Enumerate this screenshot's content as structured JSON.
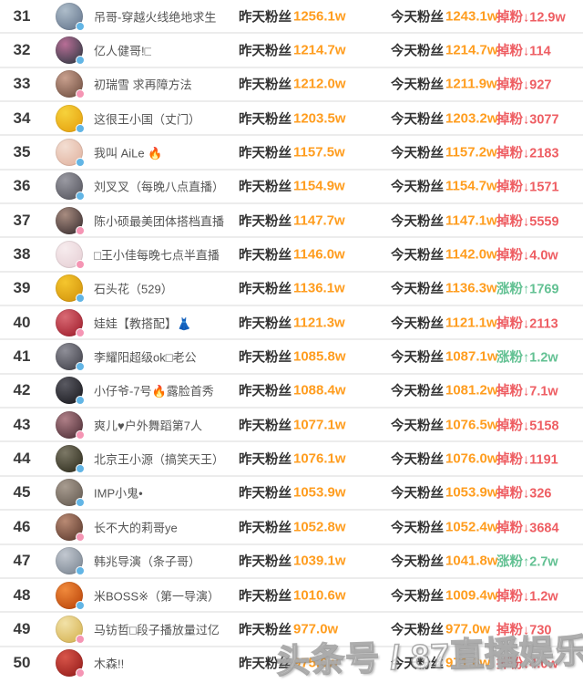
{
  "table": {
    "yesterday_label": "昨天粉丝",
    "today_label": "今天粉丝"
  },
  "watermark": "头条号 / 87直播娱乐",
  "colors": {
    "value_orange": "#ff9d1f",
    "drop_red": "#ee5e63",
    "rise_green": "#63c193",
    "badge_blue": "#62b5e5",
    "badge_pink": "#f595b4"
  },
  "rows": [
    {
      "rank": "31",
      "name": "吊哥-穿越火线绝地求生",
      "yesterday": "1256.1w",
      "today": "1243.1w",
      "change": {
        "type": "drop",
        "label": "掉粉",
        "arrow": "↓",
        "value": "12.9w"
      },
      "avatar": {
        "c1": "#aebdca",
        "c2": "#6f8096",
        "badge": "blue"
      }
    },
    {
      "rank": "32",
      "name": "亿人健哥!□",
      "yesterday": "1214.7w",
      "today": "1214.7w",
      "change": {
        "type": "drop",
        "label": "掉粉",
        "arrow": "↓",
        "value": "114"
      },
      "avatar": {
        "c1": "#b86e96",
        "c2": "#42404e",
        "badge": "blue"
      }
    },
    {
      "rank": "33",
      "name": "初瑞雪 求再障方法",
      "yesterday": "1212.0w",
      "today": "1211.9w",
      "change": {
        "type": "drop",
        "label": "掉粉",
        "arrow": "↓",
        "value": "927"
      },
      "avatar": {
        "c1": "#c9a08e",
        "c2": "#7d5b4c",
        "badge": "pink"
      }
    },
    {
      "rank": "34",
      "name": "这很王小国（丈门）",
      "yesterday": "1203.5w",
      "today": "1203.2w",
      "change": {
        "type": "drop",
        "label": "掉粉",
        "arrow": "↓",
        "value": "3077"
      },
      "avatar": {
        "c1": "#f6d23c",
        "c2": "#e8a714",
        "badge": "blue"
      }
    },
    {
      "rank": "35",
      "name": "我叫 AiLe 🔥",
      "yesterday": "1157.5w",
      "today": "1157.2w",
      "change": {
        "type": "drop",
        "label": "掉粉",
        "arrow": "↓",
        "value": "2183"
      },
      "avatar": {
        "c1": "#f3ded2",
        "c2": "#e3b8a6",
        "badge": "blue"
      }
    },
    {
      "rank": "36",
      "name": "刘叉叉（每晚八点直播）",
      "yesterday": "1154.9w",
      "today": "1154.7w",
      "change": {
        "type": "drop",
        "label": "掉粉",
        "arrow": "↓",
        "value": "1571"
      },
      "avatar": {
        "c1": "#9a9aa2",
        "c2": "#5f5f68",
        "badge": "blue"
      }
    },
    {
      "rank": "37",
      "name": "陈小硕最美团体搭档直播",
      "yesterday": "1147.7w",
      "today": "1147.1w",
      "change": {
        "type": "drop",
        "label": "掉粉",
        "arrow": "↓",
        "value": "5559"
      },
      "avatar": {
        "c1": "#a88c80",
        "c2": "#4a3c3c",
        "badge": "pink"
      }
    },
    {
      "rank": "38",
      "name": "□王小佳每晚七点半直播",
      "yesterday": "1146.0w",
      "today": "1142.0w",
      "change": {
        "type": "drop",
        "label": "掉粉",
        "arrow": "↓",
        "value": "4.0w"
      },
      "avatar": {
        "c1": "#f7ecee",
        "c2": "#e8d3d8",
        "badge": "pink"
      }
    },
    {
      "rank": "39",
      "name": "石头花（529）",
      "yesterday": "1136.1w",
      "today": "1136.3w",
      "change": {
        "type": "rise",
        "label": "涨粉",
        "arrow": "↑",
        "value": "1769"
      },
      "avatar": {
        "c1": "#f5c62e",
        "c2": "#d79a10",
        "badge": "blue"
      }
    },
    {
      "rank": "40",
      "name": "娃娃【教搭配】👗",
      "yesterday": "1121.3w",
      "today": "1121.1w",
      "change": {
        "type": "drop",
        "label": "掉粉",
        "arrow": "↓",
        "value": "2113"
      },
      "avatar": {
        "c1": "#d96a74",
        "c2": "#a82836",
        "badge": "pink"
      }
    },
    {
      "rank": "41",
      "name": "李耀阳超级ok□老公",
      "yesterday": "1085.8w",
      "today": "1087.1w",
      "change": {
        "type": "rise",
        "label": "涨粉",
        "arrow": "↑",
        "value": "1.2w"
      },
      "avatar": {
        "c1": "#8f8f98",
        "c2": "#4c4c55",
        "badge": "blue"
      }
    },
    {
      "rank": "42",
      "name": "小仔爷-7号🔥露脸首秀",
      "yesterday": "1088.4w",
      "today": "1081.2w",
      "change": {
        "type": "drop",
        "label": "掉粉",
        "arrow": "↓",
        "value": "7.1w"
      },
      "avatar": {
        "c1": "#5a5a62",
        "c2": "#232329",
        "badge": "blue"
      }
    },
    {
      "rank": "43",
      "name": "爽儿♥户外舞蹈第7人",
      "yesterday": "1077.1w",
      "today": "1076.5w",
      "change": {
        "type": "drop",
        "label": "掉粉",
        "arrow": "↓",
        "value": "5158"
      },
      "avatar": {
        "c1": "#b08088",
        "c2": "#5c3a42",
        "badge": "pink"
      }
    },
    {
      "rank": "44",
      "name": "北京王小源（搞笑天王）",
      "yesterday": "1076.1w",
      "today": "1076.0w",
      "change": {
        "type": "drop",
        "label": "掉粉",
        "arrow": "↓",
        "value": "1191"
      },
      "avatar": {
        "c1": "#7c7866",
        "c2": "#3a3828",
        "badge": "blue"
      }
    },
    {
      "rank": "45",
      "name": "IMP小鬼•",
      "yesterday": "1053.9w",
      "today": "1053.9w",
      "change": {
        "type": "drop",
        "label": "掉粉",
        "arrow": "↓",
        "value": "326"
      },
      "avatar": {
        "c1": "#a89c90",
        "c2": "#6e645a",
        "badge": "blue"
      }
    },
    {
      "rank": "46",
      "name": "长不大的莉哥ye",
      "yesterday": "1052.8w",
      "today": "1052.4w",
      "change": {
        "type": "drop",
        "label": "掉粉",
        "arrow": "↓",
        "value": "3684"
      },
      "avatar": {
        "c1": "#b98a74",
        "c2": "#6b4638",
        "badge": "pink"
      }
    },
    {
      "rank": "47",
      "name": "韩兆导演（条子哥）",
      "yesterday": "1039.1w",
      "today": "1041.8w",
      "change": {
        "type": "rise",
        "label": "涨粉",
        "arrow": "↑",
        "value": "2.7w"
      },
      "avatar": {
        "c1": "#c2c8d0",
        "c2": "#848e9a",
        "badge": "blue"
      }
    },
    {
      "rank": "48",
      "name": "米BOSS※（第一导演）",
      "yesterday": "1010.6w",
      "today": "1009.4w",
      "change": {
        "type": "drop",
        "label": "掉粉",
        "arrow": "↓",
        "value": "1.2w"
      },
      "avatar": {
        "c1": "#f08a3c",
        "c2": "#c24e10",
        "badge": "blue"
      }
    },
    {
      "rank": "49",
      "name": "马钫哲□段子播放量过亿",
      "yesterday": "977.0w",
      "today": "977.0w",
      "change": {
        "type": "drop",
        "label": "掉粉",
        "arrow": "↓",
        "value": "730"
      },
      "avatar": {
        "c1": "#f2e2a8",
        "c2": "#d9b85c",
        "badge": "pink"
      }
    },
    {
      "rank": "50",
      "name": "木森!!",
      "yesterday": "975.6w",
      "today": "971.6w",
      "change": {
        "type": "drop",
        "label": "掉粉",
        "arrow": "↓",
        "value": "4.0w"
      },
      "avatar": {
        "c1": "#d8554a",
        "c2": "#9e2420",
        "badge": "pink"
      }
    }
  ]
}
